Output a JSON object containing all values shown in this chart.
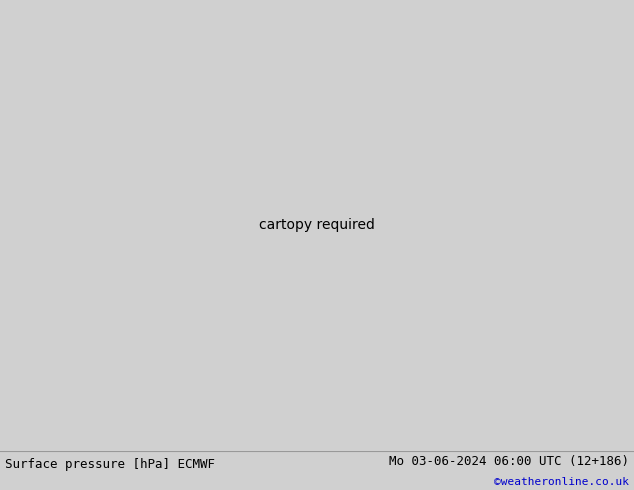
{
  "title_left": "Surface pressure [hPa] ECMWF",
  "title_right": "Mo 03-06-2024 06:00 UTC (12+186)",
  "copyright": "©weatheronline.co.uk",
  "bg_color": "#d0d0d0",
  "land_color": "#aade8a",
  "ocean_color": "#d0d0d0",
  "coast_color": "#888888",
  "footer_bg": "#e0e0e0",
  "copyright_color": "#0000cc",
  "black_isobar_color": "#000000",
  "blue_isobar_color": "#0000ff",
  "red_isobar_color": "#ff0000",
  "extent": [
    75,
    185,
    -65,
    10
  ],
  "figwidth": 6.34,
  "figheight": 4.9,
  "dpi": 100
}
